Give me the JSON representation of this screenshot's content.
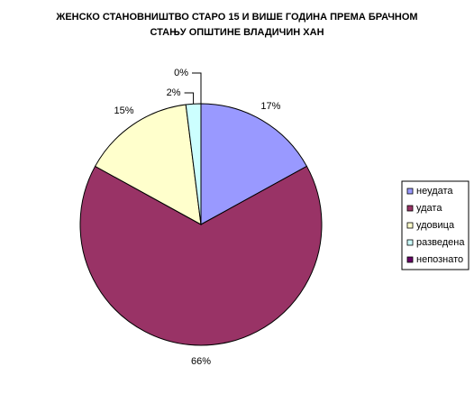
{
  "chart_data": {
    "type": "pie",
    "title": [
      "ЖЕНСКО СТАНОВНИШТВО СТАРО 15 И ВИШЕ ГОДИНА ПРЕМА БРАЧНОМ",
      "СТАЊУ ОПШТИНЕ ВЛАДИЧИН ХАН"
    ],
    "categories": [
      "неудата",
      "удата",
      "удовица",
      "разведена",
      "непознато"
    ],
    "values": [
      17,
      66,
      15,
      2,
      0
    ],
    "value_labels": [
      "17%",
      "66%",
      "15%",
      "2%",
      "0%"
    ],
    "colors": [
      "#9999ff",
      "#993366",
      "#ffffcc",
      "#ccffff",
      "#660066"
    ],
    "legend": "right"
  }
}
